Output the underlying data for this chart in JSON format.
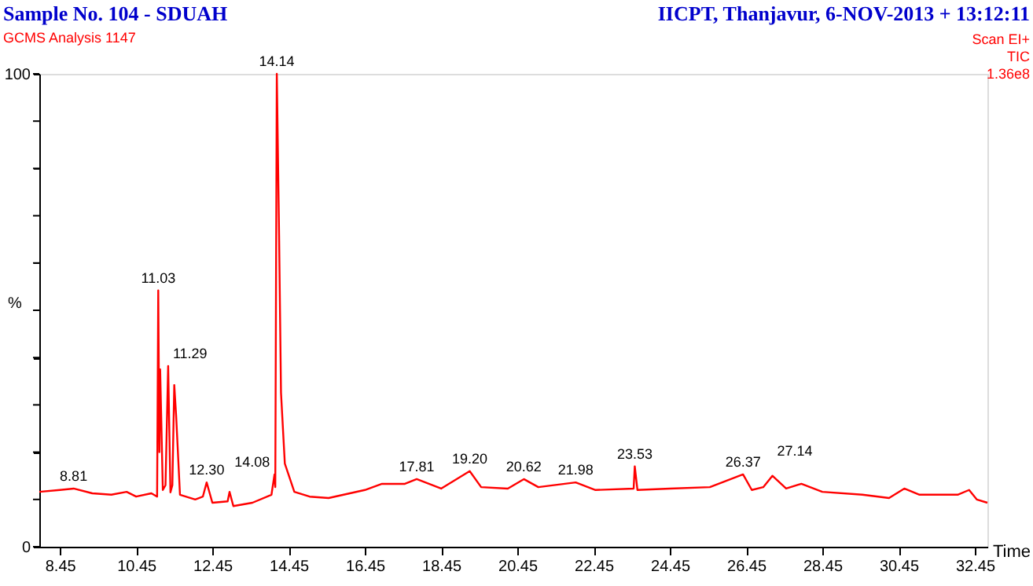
{
  "chart_data": {
    "type": "line",
    "title": "Sample No. 104 - SDUAH",
    "subtitle": "GCMS Analysis 1147",
    "xlabel": "Time",
    "ylabel": "%",
    "x": [
      7.91,
      8.45,
      8.81,
      9.3,
      9.8,
      10.2,
      10.45,
      10.85,
      11.0,
      11.03,
      11.06,
      11.08,
      11.15,
      11.22,
      11.29,
      11.35,
      11.4,
      11.45,
      11.5,
      11.6,
      12.0,
      12.2,
      12.3,
      12.45,
      12.85,
      12.9,
      13.0,
      13.5,
      14.0,
      14.08,
      14.1,
      14.14,
      14.2,
      14.25,
      14.35,
      14.6,
      15.0,
      15.5,
      16.45,
      16.9,
      17.5,
      17.81,
      18.45,
      19.2,
      19.5,
      20.2,
      20.62,
      21.0,
      21.98,
      22.5,
      23.5,
      23.53,
      23.6,
      24.45,
      25.5,
      26.37,
      26.6,
      26.9,
      27.14,
      27.5,
      27.9,
      28.45,
      29.5,
      30.2,
      30.6,
      31.0,
      32.0,
      32.3,
      32.5,
      32.78
    ],
    "series": [
      {
        "color": "#ff0000",
        "values": [
          11.6,
          12.0,
          12.3,
          11.3,
          11.0,
          11.6,
          10.6,
          11.3,
          10.6,
          54.2,
          20.0,
          37.5,
          12.0,
          13.0,
          38.2,
          11.5,
          13.0,
          34.2,
          27.6,
          11.0,
          10.0,
          10.6,
          13.6,
          9.3,
          9.6,
          11.6,
          8.6,
          9.3,
          11.0,
          15.3,
          12.6,
          100,
          65.8,
          32.6,
          17.6,
          11.6,
          10.6,
          10.3,
          12.0,
          13.3,
          13.3,
          14.3,
          12.3,
          16.0,
          12.6,
          12.3,
          14.3,
          12.6,
          13.6,
          12.0,
          12.3,
          17.0,
          12.0,
          12.3,
          12.6,
          15.3,
          12.0,
          12.6,
          15.0,
          12.3,
          13.3,
          11.6,
          11.0,
          10.3,
          12.3,
          11.0,
          11.0,
          12.0,
          10.0,
          9.3
        ]
      }
    ],
    "xlim": [
      7.91,
      32.78
    ],
    "ylim": [
      0,
      100
    ],
    "xticks": [
      8.45,
      10.45,
      12.45,
      14.45,
      16.45,
      18.45,
      20.45,
      22.45,
      24.45,
      26.45,
      28.45,
      30.45,
      32.45
    ],
    "yticks": [
      0,
      {
        "value": 10,
        "label": null
      },
      {
        "value": 20,
        "label": null
      },
      {
        "value": 30,
        "label": null
      },
      {
        "value": 40,
        "label": null
      },
      {
        "value": 50,
        "label": null
      },
      {
        "value": 60,
        "label": null
      },
      {
        "value": 70,
        "label": null
      },
      {
        "value": 80,
        "label": null
      },
      {
        "value": 90,
        "label": null
      },
      100
    ],
    "grid": false,
    "marker": "none",
    "line_style": "solid",
    "annotations": [
      "IICPT, Thanjavur,  6-NOV-2013 + 13:12:11",
      "Scan EI+",
      "TIC",
      "1.36e8",
      {
        "text": "8.81",
        "x": 8.81,
        "y": 12.3
      },
      {
        "text": "11.03",
        "x": 11.03,
        "y": 54.2
      },
      {
        "text": "11.29",
        "x": 11.29,
        "y": 38.2
      },
      {
        "text": "12.30",
        "x": 12.3,
        "y": 13.6
      },
      {
        "text": "14.08",
        "x": 14.08,
        "y": 15.3
      },
      {
        "text": "14.14",
        "x": 14.14,
        "y": 100
      },
      {
        "text": "17.81",
        "x": 17.81,
        "y": 14.3
      },
      {
        "text": "19.20",
        "x": 19.2,
        "y": 16.0
      },
      {
        "text": "20.62",
        "x": 20.62,
        "y": 14.3
      },
      {
        "text": "21.98",
        "x": 21.98,
        "y": 13.6
      },
      {
        "text": "23.53",
        "x": 23.53,
        "y": 17.0
      },
      {
        "text": "26.37",
        "x": 26.37,
        "y": 15.3
      },
      {
        "text": "27.14",
        "x": 27.14,
        "y": 15.0
      }
    ]
  }
}
